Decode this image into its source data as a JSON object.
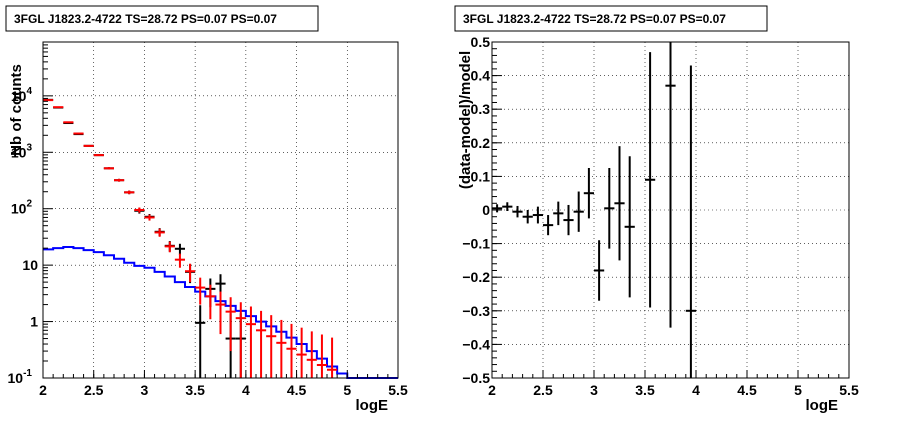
{
  "chart_data": [
    {
      "type": "histogram",
      "title": "3FGL J1823.2-4722 TS=28.72 PS=0.07 PS=0.07",
      "xlabel": "logE",
      "ylabel": "Nb of counts",
      "xlim": [
        2,
        5.5
      ],
      "ylim": [
        0.1,
        90000
      ],
      "yscale": "log",
      "grid": true,
      "xticks": [
        "2",
        "2.5",
        "3",
        "3.5",
        "4",
        "4.5",
        "5",
        "5.5"
      ],
      "yticks": [
        {
          "value": 0.1,
          "label": "10",
          "exp": "-1"
        },
        {
          "value": 1,
          "label": "1",
          "exp": ""
        },
        {
          "value": 10,
          "label": "10",
          "exp": ""
        },
        {
          "value": 100,
          "label": "10",
          "exp": "2"
        },
        {
          "value": 1000,
          "label": "10",
          "exp": "3"
        },
        {
          "value": 10000,
          "label": "10",
          "exp": "4"
        }
      ],
      "bin_edges": [
        2.0,
        2.1,
        2.2,
        2.3,
        2.4,
        2.5,
        2.6,
        2.7,
        2.8,
        2.9,
        3.0,
        3.1,
        3.2,
        3.3,
        3.4,
        3.5,
        3.6,
        3.7,
        3.8,
        3.9,
        4.0,
        4.1,
        4.2,
        4.3,
        4.4,
        4.5,
        4.6,
        4.7,
        4.8,
        4.9,
        5.0,
        5.1,
        5.2,
        5.3,
        5.4,
        5.5
      ],
      "series": [
        {
          "color": "#0000ff",
          "style": "step",
          "values": [
            19,
            20,
            21,
            20,
            18.5,
            17,
            15,
            13,
            11,
            9.7,
            9.0,
            7.6,
            6.3,
            5.0,
            4.1,
            3.4,
            2.8,
            2.3,
            1.9,
            1.55,
            1.25,
            1.0,
            0.82,
            0.66,
            0.52,
            0.4,
            0.3,
            0.22,
            0.16,
            0.12,
            0.1,
            0.1,
            0.1,
            0.1,
            0.1
          ]
        },
        {
          "color": "#000000",
          "style": "errorbar",
          "x": [
            2.05,
            2.15,
            2.25,
            2.35,
            2.45,
            2.55,
            2.65,
            2.75,
            2.85,
            2.95,
            3.05,
            3.15,
            3.25,
            3.35,
            3.45,
            3.55,
            3.65,
            3.75,
            3.85,
            3.95
          ],
          "y": [
            8500,
            6200,
            3300,
            2100,
            1300,
            890,
            520,
            320,
            195,
            92,
            72,
            39,
            22,
            19.5,
            7.6,
            0.95,
            3.8,
            4.7,
            0.5,
            0.5
          ],
          "err": [
            92,
            79,
            57,
            46,
            36,
            30,
            23,
            18,
            14,
            10,
            8.5,
            6.2,
            4.7,
            4.4,
            2.8,
            1.0,
            2.0,
            2.2,
            0.9,
            0.9
          ]
        },
        {
          "color": "#ff0000",
          "style": "errorbar",
          "x": [
            2.05,
            2.15,
            2.25,
            2.35,
            2.45,
            2.55,
            2.65,
            2.75,
            2.85,
            2.95,
            3.05,
            3.15,
            3.25,
            3.35,
            3.45,
            3.55,
            3.65,
            3.75,
            3.85,
            3.95,
            4.05,
            4.15,
            4.25,
            4.35,
            4.45,
            4.55,
            4.65,
            4.75,
            4.85
          ],
          "y": [
            8400,
            6300,
            3400,
            2150,
            1300,
            890,
            520,
            320,
            195,
            95,
            70,
            38,
            21.5,
            12.5,
            7.8,
            4.0,
            2.8,
            2.0,
            1.5,
            1.15,
            0.9,
            0.7,
            0.55,
            0.42,
            0.33,
            0.26,
            0.21,
            0.17,
            0.14
          ],
          "err": [
            92,
            79,
            58,
            46,
            36,
            30,
            23,
            18,
            14,
            10,
            8.4,
            6.2,
            4.6,
            3.5,
            2.8,
            2.0,
            1.7,
            1.4,
            1.2,
            1.05,
            0.95,
            0.85,
            0.75,
            0.65,
            0.58,
            0.52,
            0.46,
            0.42,
            0.38
          ]
        }
      ]
    },
    {
      "type": "scatter",
      "title": "3FGL J1823.2-4722 TS=28.72 PS=0.07 PS=0.07",
      "xlabel": "logE",
      "ylabel": "(data-model)/model",
      "xlim": [
        2,
        5.5
      ],
      "ylim": [
        -0.5,
        0.5
      ],
      "grid": true,
      "xticks": [
        "2",
        "2.5",
        "3",
        "3.5",
        "4",
        "4.5",
        "5",
        "5.5"
      ],
      "yticks": [
        "−0.5",
        "−0.4",
        "−0.3",
        "−0.2",
        "−0.1",
        "0",
        "0.1",
        "0.2",
        "0.3",
        "0.4",
        "0.5"
      ],
      "series": [
        {
          "color": "#000000",
          "style": "errorbar",
          "x": [
            2.05,
            2.15,
            2.25,
            2.35,
            2.45,
            2.55,
            2.65,
            2.75,
            2.85,
            2.95,
            3.05,
            3.15,
            3.25,
            3.35,
            3.55,
            3.75,
            3.95
          ],
          "y": [
            0.005,
            0.01,
            -0.005,
            -0.02,
            -0.015,
            -0.045,
            -0.01,
            -0.03,
            -0.005,
            0.05,
            -0.18,
            0.005,
            0.02,
            -0.05,
            0.09,
            0.37,
            -0.3
          ],
          "err": [
            0.012,
            0.013,
            0.017,
            0.02,
            0.025,
            0.03,
            0.035,
            0.045,
            0.06,
            0.075,
            0.09,
            0.12,
            0.17,
            0.21,
            0.38,
            0.72,
            0.73
          ]
        }
      ]
    }
  ]
}
